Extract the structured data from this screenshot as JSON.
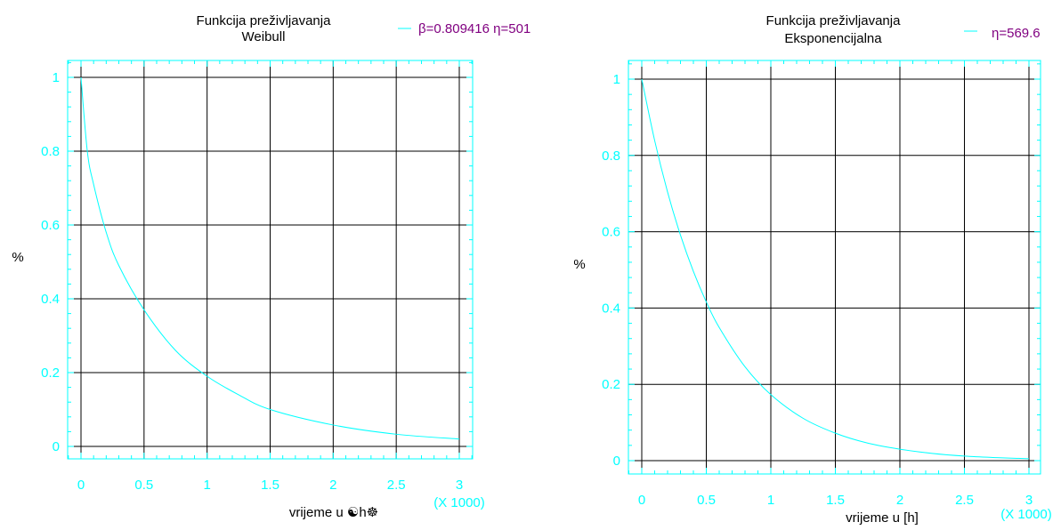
{
  "colors": {
    "curve": "#00ffff",
    "frame": "#00ffff",
    "grid": "#000000",
    "legend_text": "#800080",
    "tick_text": "#00ffff"
  },
  "chart_data": [
    {
      "type": "line",
      "title_line1": "Funkcija preživljavanja",
      "title_line2": "Weibull",
      "legend": "β=0.809416 η=501",
      "xlabel": "vrijeme u ☯h☸",
      "ylabel": "%",
      "x_multiplier_label": "(X 1000)",
      "xlim": [
        0,
        3
      ],
      "ylim": [
        0,
        1
      ],
      "grid": true,
      "legend_position": "top-right",
      "xticks": [
        "0",
        "0.5",
        "1",
        "1.5",
        "2",
        "2.5",
        "3"
      ],
      "yticks": [
        "0",
        "0.2",
        "0.4",
        "0.6",
        "0.8",
        "1"
      ],
      "series": [
        {
          "x": [
            0,
            0.05,
            0.1,
            0.2,
            0.3,
            0.5,
            0.75,
            1,
            1.25,
            1.5,
            2,
            2.5,
            3
          ],
          "y": [
            1,
            0.8,
            0.71,
            0.58,
            0.49,
            0.37,
            0.26,
            0.19,
            0.14,
            0.1,
            0.058,
            0.033,
            0.02
          ]
        }
      ]
    },
    {
      "type": "line",
      "title_line1": "Funkcija preživljavanja",
      "title_line2": "Eksponencijalna",
      "legend": "η=569.6",
      "xlabel": "vrijeme u [h]",
      "ylabel": "%",
      "x_multiplier_label": "(X 1000)",
      "xlim": [
        0,
        3
      ],
      "ylim": [
        0,
        1
      ],
      "grid": true,
      "legend_position": "top-right",
      "xticks": [
        "0",
        "0.5",
        "1",
        "1.5",
        "2",
        "2.5",
        "3"
      ],
      "yticks": [
        "0",
        "0.2",
        "0.4",
        "0.6",
        "0.8",
        "1"
      ],
      "series": [
        {
          "x": [
            0,
            0.1,
            0.2,
            0.3,
            0.4,
            0.5,
            0.6,
            0.8,
            1,
            1.25,
            1.5,
            1.75,
            2,
            2.25,
            2.5,
            2.75,
            3
          ],
          "y": [
            1,
            0.839,
            0.704,
            0.591,
            0.496,
            0.416,
            0.349,
            0.246,
            0.173,
            0.111,
            0.072,
            0.046,
            0.03,
            0.019,
            0.012,
            0.008,
            0.005
          ]
        }
      ]
    }
  ]
}
